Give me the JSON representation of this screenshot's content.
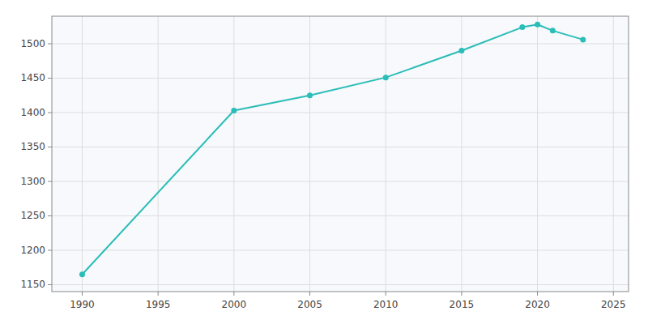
{
  "chart_data": {
    "type": "line",
    "x": [
      1990,
      2000,
      2005,
      2010,
      2015,
      2019,
      2020,
      2021,
      2023
    ],
    "values": [
      1165,
      1403,
      1425,
      1451,
      1490,
      1524,
      1528,
      1519,
      1506
    ],
    "color": "#2bbdb8",
    "marker": "circle",
    "xlim": [
      1988,
      2026
    ],
    "ylim": [
      1140,
      1540
    ],
    "xticks": [
      1990,
      1995,
      2000,
      2005,
      2010,
      2015,
      2020,
      2025
    ],
    "yticks": [
      1150,
      1200,
      1250,
      1300,
      1350,
      1400,
      1450,
      1500
    ],
    "grid": true
  }
}
